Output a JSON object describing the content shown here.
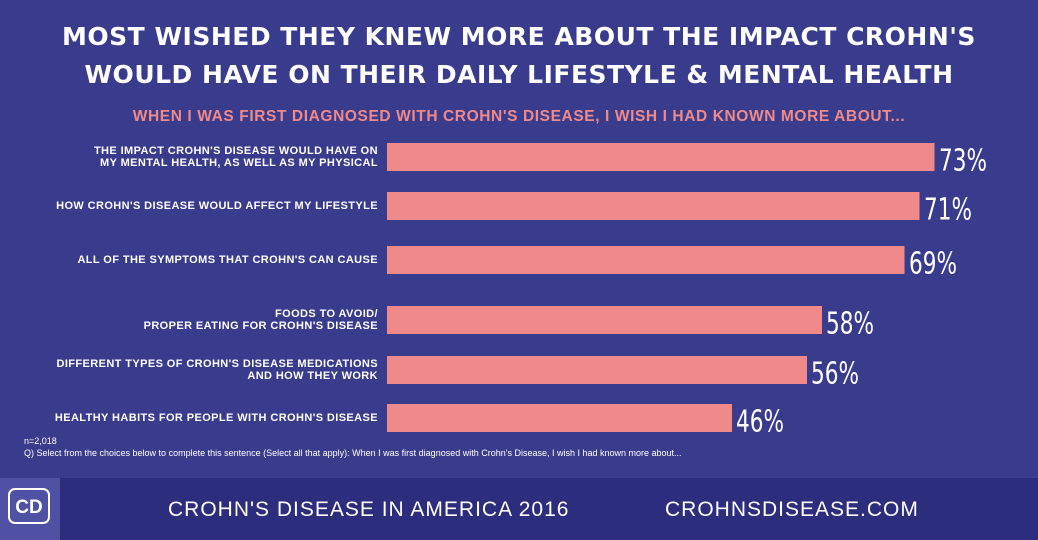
{
  "chart_data": {
    "type": "bar",
    "title": "MOST WISHED THEY KNEW MORE ABOUT THE IMPACT CROHN'S\nWOULD HAVE ON THEIR DAILY LIFESTYLE & MENTAL HEALTH",
    "subtitle": "WHEN I WAS FIRST DIAGNOSED WITH CROHN'S DISEASE, I WISH I HAD KNOWN MORE ABOUT...",
    "categories": [
      "THE IMPACT CROHN'S DISEASE WOULD HAVE ON\nMY MENTAL HEALTH, AS WELL AS MY PHYSICAL",
      "HOW CROHN'S DISEASE WOULD AFFECT MY LIFESTYLE",
      "ALL OF THE SYMPTOMS THAT CROHN'S CAN CAUSE",
      "FOODS TO AVOID/\nPROPER EATING FOR CROHN'S DISEASE",
      "DIFFERENT TYPES OF CROHN'S DISEASE MEDICATIONS\nAND HOW THEY WORK",
      "HEALTHY HABITS FOR PEOPLE WITH CROHN'S DISEASE"
    ],
    "values": [
      73,
      71,
      69,
      58,
      56,
      46
    ],
    "value_labels": [
      "73%",
      "71%",
      "69%",
      "58%",
      "56%",
      "46%"
    ],
    "color": "#f08a8a",
    "note": "n=2,018",
    "question": "Q) Select from the choices below to complete this sentence (Select all that apply): When I was first diagnosed with Crohn's Disease, I wish I had known more about..."
  },
  "footer": {
    "logo": "CD",
    "left": "CROHN'S DISEASE IN AMERICA 2016",
    "right": "CROHNSDISEASE.COM"
  }
}
